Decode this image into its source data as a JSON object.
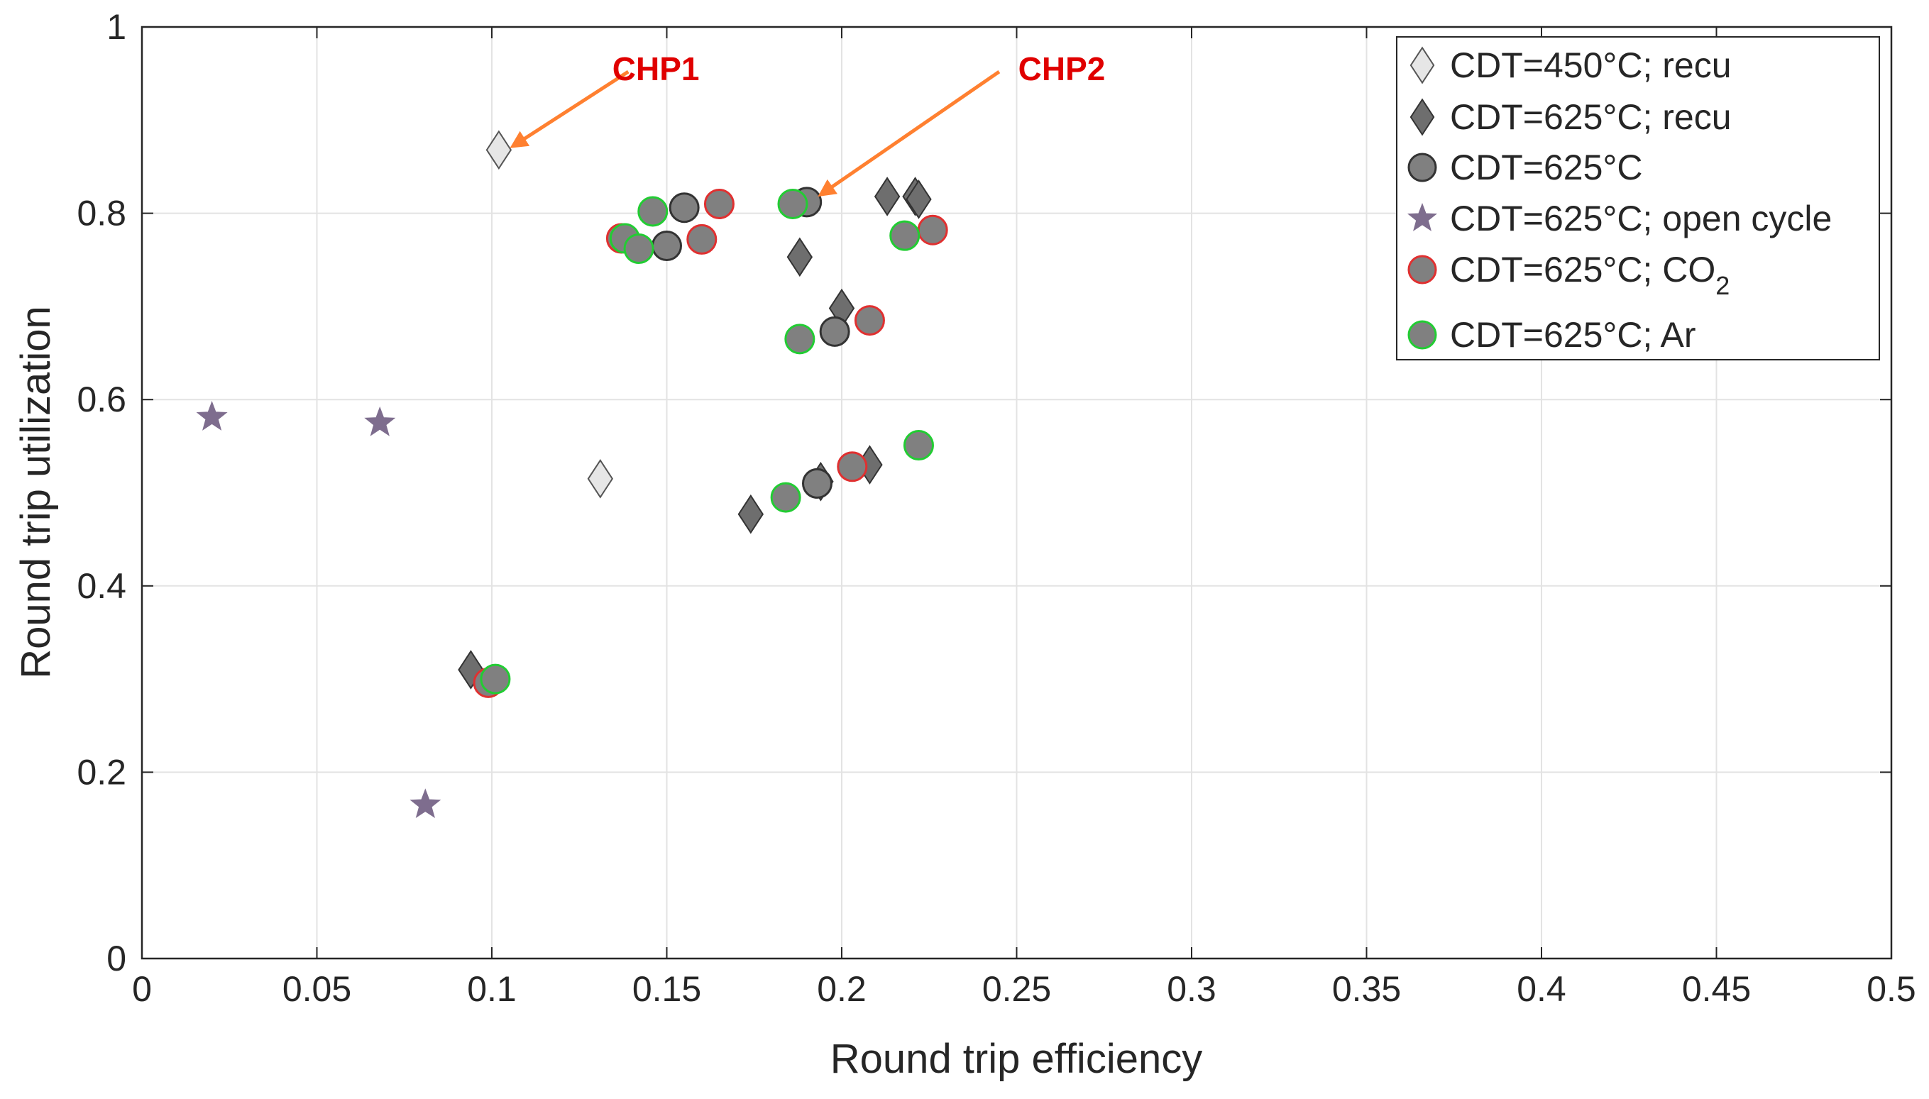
{
  "chart_data": {
    "type": "scatter",
    "title": "",
    "xlabel": "Round trip efficiency",
    "ylabel": "Round trip utilization",
    "xlim": [
      0,
      0.5
    ],
    "ylim": [
      0,
      1
    ],
    "xticks": [
      0,
      0.05,
      0.1,
      0.15,
      0.2,
      0.25,
      0.3,
      0.35,
      0.4,
      0.45,
      0.5
    ],
    "xtick_labels": [
      "0",
      "0.05",
      "0.1",
      "0.15",
      "0.2",
      "0.25",
      "0.3",
      "0.35",
      "0.4",
      "0.45",
      "0.5"
    ],
    "yticks": [
      0,
      0.2,
      0.4,
      0.6,
      0.8,
      1
    ],
    "ytick_labels": [
      "0",
      "0.2",
      "0.4",
      "0.6",
      "0.8",
      "1"
    ],
    "grid": true,
    "legend_position": "top-right",
    "series": [
      {
        "name": "CDT=450°C; recu",
        "label": "CDT=450°C; recu",
        "marker": "diamond",
        "fill": "#e6e6e6",
        "edge": "#555555",
        "points": [
          [
            0.102,
            0.868
          ],
          [
            0.131,
            0.515
          ]
        ]
      },
      {
        "name": "CDT=625°C; recu",
        "label": "CDT=625°C; recu",
        "marker": "diamond",
        "fill": "#6e6e6e",
        "edge": "#333333",
        "points": [
          [
            0.094,
            0.31
          ],
          [
            0.174,
            0.477
          ],
          [
            0.188,
            0.753
          ],
          [
            0.194,
            0.512
          ],
          [
            0.2,
            0.698
          ],
          [
            0.208,
            0.53
          ],
          [
            0.213,
            0.818
          ],
          [
            0.221,
            0.818
          ],
          [
            0.222,
            0.815
          ]
        ]
      },
      {
        "name": "CDT=625°C",
        "label": "CDT=625°C",
        "marker": "circle",
        "fill": "#808080",
        "edge": "#333333",
        "points": [
          [
            0.15,
            0.765
          ],
          [
            0.155,
            0.806
          ],
          [
            0.19,
            0.812
          ],
          [
            0.193,
            0.51
          ],
          [
            0.198,
            0.673
          ]
        ]
      },
      {
        "name": "CDT=625°C; open cycle",
        "label": "CDT=625°C; open cycle",
        "marker": "star",
        "fill": "#7e6d8e",
        "edge": "#7e6d8e",
        "points": [
          [
            0.02,
            0.581
          ],
          [
            0.068,
            0.575
          ],
          [
            0.081,
            0.165
          ]
        ]
      },
      {
        "name": "CDT=625°C; CO2",
        "label_main": "CDT=625°C; CO",
        "label_sub": "2",
        "marker": "circle",
        "fill": "#808080",
        "edge": "#e03030",
        "points": [
          [
            0.099,
            0.296
          ],
          [
            0.137,
            0.773
          ],
          [
            0.16,
            0.772
          ],
          [
            0.165,
            0.81
          ],
          [
            0.203,
            0.528
          ],
          [
            0.208,
            0.685
          ],
          [
            0.226,
            0.782
          ]
        ]
      },
      {
        "name": "CDT=625°C; Ar",
        "label": "CDT=625°C; Ar",
        "marker": "circle",
        "fill": "#808080",
        "edge": "#22cc33",
        "points": [
          [
            0.101,
            0.3
          ],
          [
            0.138,
            0.773
          ],
          [
            0.142,
            0.762
          ],
          [
            0.146,
            0.802
          ],
          [
            0.184,
            0.495
          ],
          [
            0.186,
            0.81
          ],
          [
            0.188,
            0.665
          ],
          [
            0.218,
            0.776
          ],
          [
            0.222,
            0.551
          ]
        ]
      }
    ],
    "annotations": [
      {
        "text": "CHP1",
        "text_at": [
          0.132,
          0.955
        ],
        "arrow_from": [
          0.139,
          0.952
        ],
        "arrow_to": [
          0.106,
          0.872
        ]
      },
      {
        "text": "CHP2",
        "text_at": [
          0.248,
          0.955
        ],
        "arrow_from": [
          0.245,
          0.952
        ],
        "arrow_to": [
          0.194,
          0.82
        ]
      }
    ],
    "annotation_color": "#ff8030"
  }
}
